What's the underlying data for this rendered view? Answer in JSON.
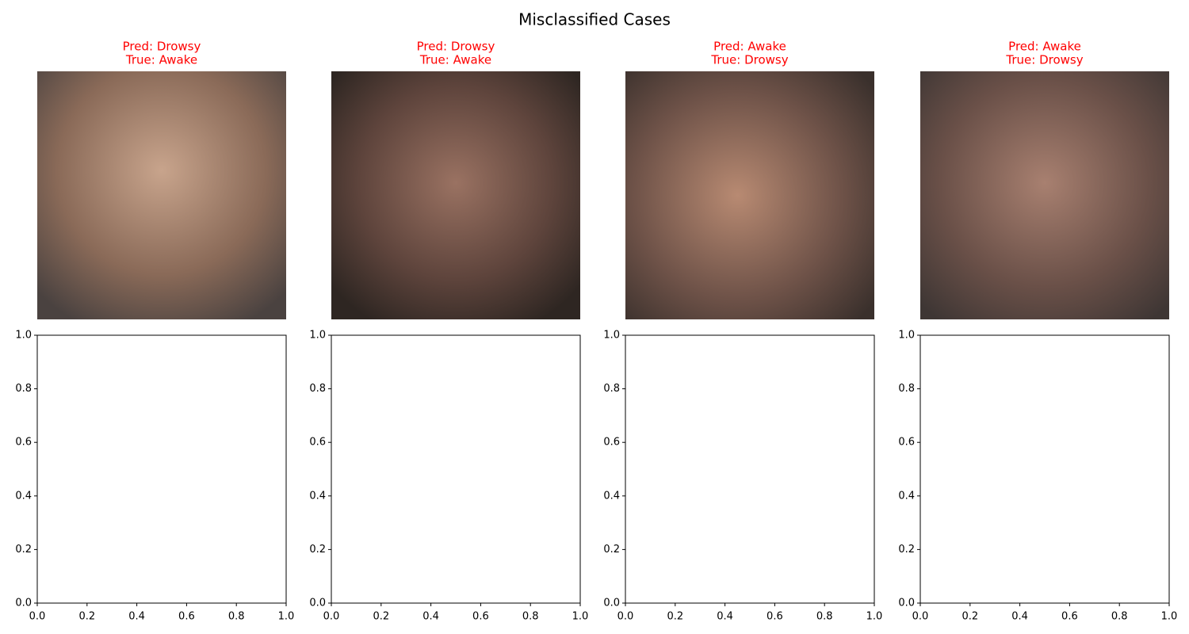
{
  "title": "Misclassified Cases",
  "image_panels": [
    {
      "pred": "Pred: Drowsy",
      "true": "True: Awake"
    },
    {
      "pred": "Pred: Drowsy",
      "true": "True: Awake"
    },
    {
      "pred": "Pred: Awake",
      "true": "True: Drowsy"
    },
    {
      "pred": "Pred: Awake",
      "true": "True: Drowsy"
    }
  ],
  "chart_data": [
    {
      "type": "empty",
      "xlim": [
        0,
        1
      ],
      "ylim": [
        0,
        1
      ],
      "xticks": [
        {
          "value": 0,
          "label": "0.0"
        },
        {
          "value": 0.2,
          "label": "0.2"
        },
        {
          "value": 0.4,
          "label": "0.4"
        },
        {
          "value": 0.6,
          "label": "0.6"
        },
        {
          "value": 0.8,
          "label": "0.8"
        },
        {
          "value": 1,
          "label": "1.0"
        }
      ],
      "yticks": [
        {
          "value": 0,
          "label": "0.0"
        },
        {
          "value": 0.2,
          "label": "0.2"
        },
        {
          "value": 0.4,
          "label": "0.4"
        },
        {
          "value": 0.6,
          "label": "0.6"
        },
        {
          "value": 0.8,
          "label": "0.8"
        },
        {
          "value": 1,
          "label": "1.0"
        }
      ]
    },
    {
      "type": "empty",
      "xlim": [
        0,
        1
      ],
      "ylim": [
        0,
        1
      ],
      "xticks": [
        {
          "value": 0,
          "label": "0.0"
        },
        {
          "value": 0.2,
          "label": "0.2"
        },
        {
          "value": 0.4,
          "label": "0.4"
        },
        {
          "value": 0.6,
          "label": "0.6"
        },
        {
          "value": 0.8,
          "label": "0.8"
        },
        {
          "value": 1,
          "label": "1.0"
        }
      ],
      "yticks": [
        {
          "value": 0,
          "label": "0.0"
        },
        {
          "value": 0.2,
          "label": "0.2"
        },
        {
          "value": 0.4,
          "label": "0.4"
        },
        {
          "value": 0.6,
          "label": "0.6"
        },
        {
          "value": 0.8,
          "label": "0.8"
        },
        {
          "value": 1,
          "label": "1.0"
        }
      ]
    },
    {
      "type": "empty",
      "xlim": [
        0,
        1
      ],
      "ylim": [
        0,
        1
      ],
      "xticks": [
        {
          "value": 0,
          "label": "0.0"
        },
        {
          "value": 0.2,
          "label": "0.2"
        },
        {
          "value": 0.4,
          "label": "0.4"
        },
        {
          "value": 0.6,
          "label": "0.6"
        },
        {
          "value": 0.8,
          "label": "0.8"
        },
        {
          "value": 1,
          "label": "1.0"
        }
      ],
      "yticks": [
        {
          "value": 0,
          "label": "0.0"
        },
        {
          "value": 0.2,
          "label": "0.2"
        },
        {
          "value": 0.4,
          "label": "0.4"
        },
        {
          "value": 0.6,
          "label": "0.6"
        },
        {
          "value": 0.8,
          "label": "0.8"
        },
        {
          "value": 1,
          "label": "1.0"
        }
      ]
    },
    {
      "type": "empty",
      "xlim": [
        0,
        1
      ],
      "ylim": [
        0,
        1
      ],
      "xticks": [
        {
          "value": 0,
          "label": "0.0"
        },
        {
          "value": 0.2,
          "label": "0.2"
        },
        {
          "value": 0.4,
          "label": "0.4"
        },
        {
          "value": 0.6,
          "label": "0.6"
        },
        {
          "value": 0.8,
          "label": "0.8"
        },
        {
          "value": 1,
          "label": "1.0"
        }
      ],
      "yticks": [
        {
          "value": 0,
          "label": "0.0"
        },
        {
          "value": 0.2,
          "label": "0.2"
        },
        {
          "value": 0.4,
          "label": "0.4"
        },
        {
          "value": 0.6,
          "label": "0.6"
        },
        {
          "value": 0.8,
          "label": "0.8"
        },
        {
          "value": 1,
          "label": "1.0"
        }
      ]
    }
  ]
}
